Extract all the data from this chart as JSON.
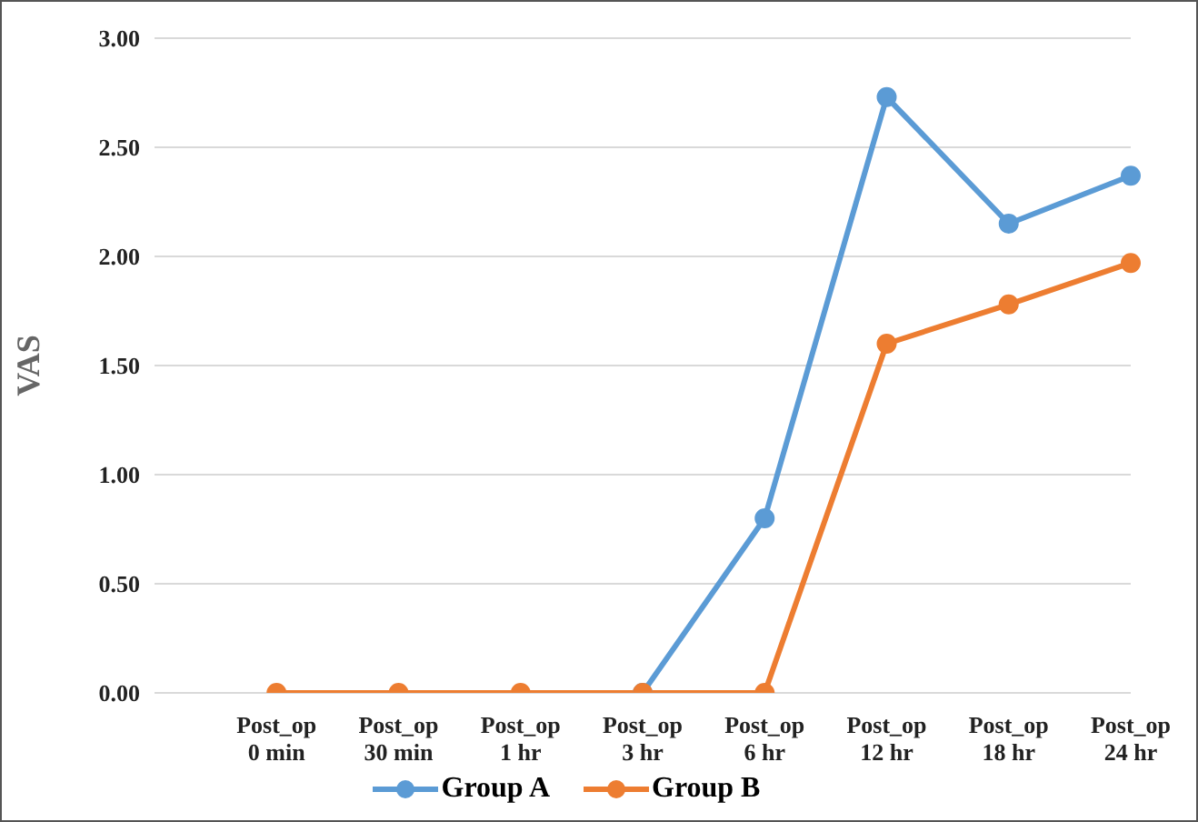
{
  "chart_data": {
    "type": "line",
    "ylabel": "VAS",
    "categories": [
      null,
      "Post_op 0 min",
      "Post_op 30 min",
      "Post_op 1 hr",
      "Post_op 3 hr",
      "Post_op 6 hr",
      "Post_op 12 hr",
      "Post_op 18 hr",
      "Post_op 24 hr"
    ],
    "series": [
      {
        "name": "Group A",
        "color": "#5b9bd5",
        "values": [
          null,
          null,
          null,
          null,
          0,
          0.8,
          2.73,
          2.15,
          2.37
        ]
      },
      {
        "name": "Group B",
        "color": "#ed7d31",
        "values": [
          null,
          0,
          0,
          0,
          0,
          0,
          1.6,
          1.78,
          1.97
        ]
      }
    ],
    "ylim": [
      0,
      3
    ],
    "yticks": [
      {
        "value": 0,
        "label": "0.00"
      },
      {
        "value": 0.5,
        "label": "0.50"
      },
      {
        "value": 1,
        "label": "1.00"
      },
      {
        "value": 1.5,
        "label": "1.50"
      },
      {
        "value": 2,
        "label": "2.00"
      },
      {
        "value": 2.5,
        "label": "2.50"
      },
      {
        "value": 3,
        "label": "3.00"
      }
    ],
    "grid": "y",
    "legend": "bottom",
    "marker": "circle",
    "line_style": "solid"
  }
}
